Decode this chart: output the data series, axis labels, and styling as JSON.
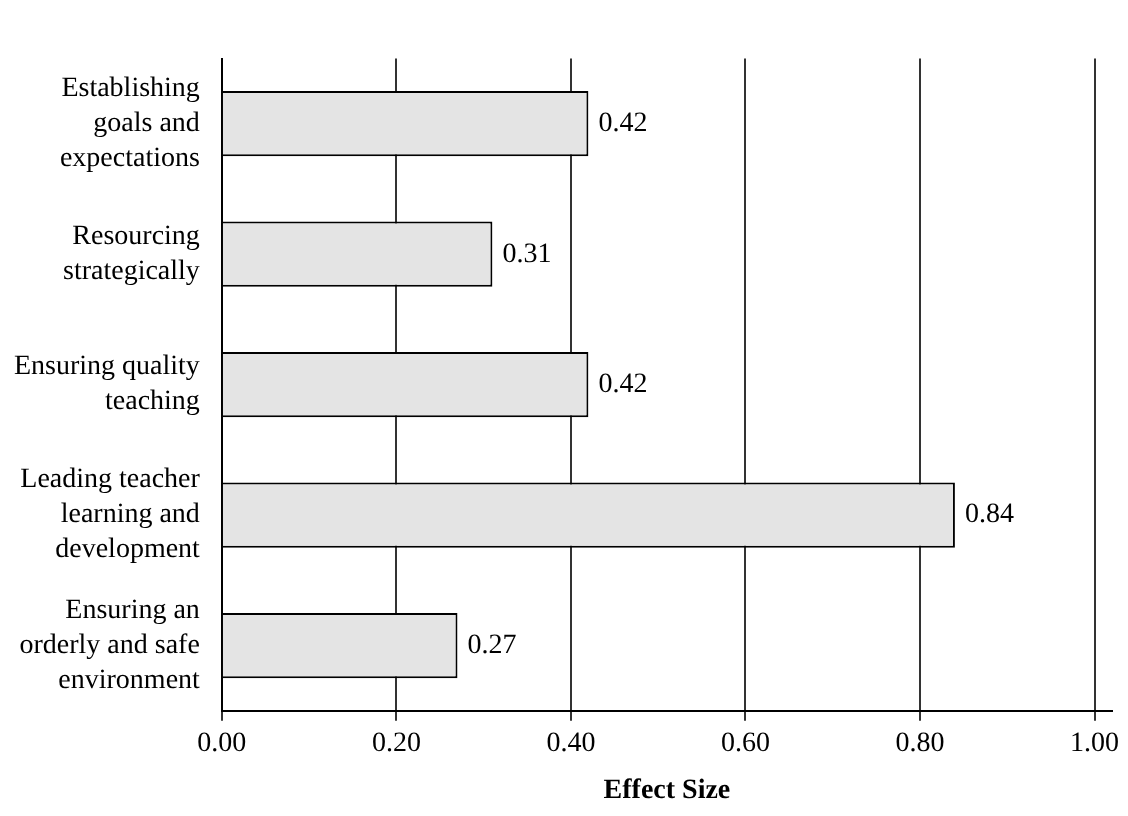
{
  "chart_data": {
    "type": "bar",
    "orientation": "horizontal",
    "xlabel": "Effect Size",
    "categories": [
      "Establishing goals and expectations",
      "Resourcing strategically",
      "Ensuring quality teaching",
      "Leading teacher learning and development",
      "Ensuring an orderly and safe environment"
    ],
    "values": [
      0.42,
      0.31,
      0.42,
      0.84,
      0.27
    ],
    "color": "#e4e4e4",
    "data_labels": true,
    "xlim": [
      0,
      1.02
    ],
    "xticks": [
      {
        "value": 0,
        "label": "0.00"
      },
      {
        "value": 0.2,
        "label": "0.20"
      },
      {
        "value": 0.4,
        "label": "0.40"
      },
      {
        "value": 0.6,
        "label": "0.60"
      },
      {
        "value": 0.8,
        "label": "0.80"
      },
      {
        "value": 1,
        "label": "1.00"
      }
    ],
    "grid": "x",
    "legend": false
  }
}
